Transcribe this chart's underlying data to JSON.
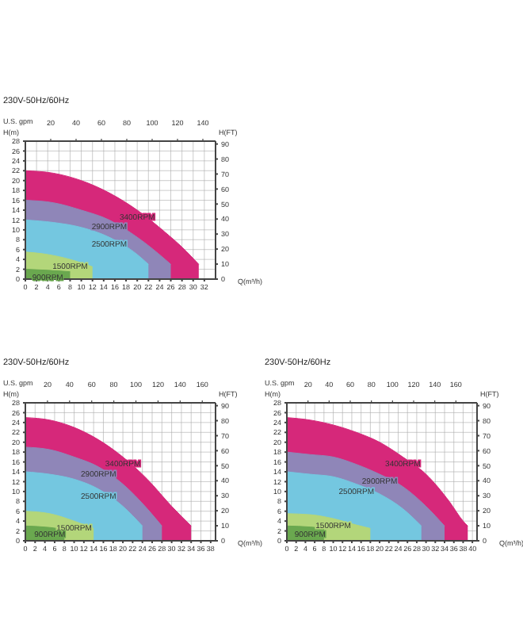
{
  "chart_data": [
    {
      "type": "area",
      "title": "230V-50Hz/60Hz",
      "xlabel": "Q(m³/h)",
      "x2label": "U.S. gpm",
      "ylabel": "H(m)",
      "y2label": "H(FT)",
      "grid": true,
      "xlim": [
        0,
        34
      ],
      "xticks": [
        0,
        2,
        4,
        6,
        8,
        10,
        12,
        14,
        16,
        18,
        20,
        22,
        24,
        26,
        28,
        30,
        32
      ],
      "x2lim": [
        0,
        150
      ],
      "x2ticks": [
        20,
        40,
        60,
        80,
        100,
        120,
        140
      ],
      "ylim": [
        0,
        28
      ],
      "yticks": [
        0,
        2,
        4,
        6,
        8,
        10,
        12,
        14,
        16,
        18,
        20,
        22,
        24,
        26,
        28
      ],
      "y2lim": [
        0,
        91.9
      ],
      "y2ticks": [
        0,
        10,
        20,
        30,
        40,
        50,
        60,
        70,
        80,
        90
      ],
      "series": [
        {
          "name": "3400RPM",
          "color": "#d6287a",
          "x": [
            0,
            5,
            10,
            15,
            20,
            25,
            28,
            31
          ],
          "values": [
            22,
            21.5,
            20,
            17.5,
            14,
            9.5,
            6.5,
            3
          ]
        },
        {
          "name": "2900RPM",
          "color": "#8f86b8",
          "x": [
            0,
            5,
            10,
            15,
            20,
            25,
            26
          ],
          "values": [
            16,
            15.5,
            14,
            12,
            8.5,
            4,
            3
          ]
        },
        {
          "name": "2500RPM",
          "color": "#74c7e0",
          "x": [
            0,
            5,
            10,
            15,
            20,
            22
          ],
          "values": [
            12,
            11.5,
            10.5,
            8.5,
            5,
            3
          ]
        },
        {
          "name": "1500RPM",
          "color": "#b3d67a",
          "x": [
            0,
            4,
            8,
            12
          ],
          "values": [
            5.5,
            5,
            4,
            2.5
          ]
        },
        {
          "name": "900RPM",
          "color": "#6aa84f",
          "x": [
            0,
            4,
            8
          ],
          "values": [
            2,
            1.8,
            1.5
          ]
        }
      ]
    },
    {
      "type": "area",
      "title": "230V-50Hz/60Hz",
      "xlabel": "Q(m³/h)",
      "x2label": "U.S. gpm",
      "ylabel": "H(m)",
      "y2label": "H(FT)",
      "grid": true,
      "xlim": [
        0,
        39
      ],
      "xticks": [
        0,
        2,
        4,
        6,
        8,
        10,
        12,
        14,
        16,
        18,
        20,
        22,
        24,
        26,
        28,
        30,
        32,
        34,
        36,
        38
      ],
      "x2lim": [
        0,
        172
      ],
      "x2ticks": [
        20,
        40,
        60,
        80,
        100,
        120,
        140,
        160
      ],
      "ylim": [
        0,
        28
      ],
      "yticks": [
        0,
        2,
        4,
        6,
        8,
        10,
        12,
        14,
        16,
        18,
        20,
        22,
        24,
        26,
        28
      ],
      "y2lim": [
        0,
        91.9
      ],
      "y2ticks": [
        0,
        10,
        20,
        30,
        40,
        50,
        60,
        70,
        80,
        90
      ],
      "series": [
        {
          "name": "3400RPM",
          "color": "#d6287a",
          "x": [
            0,
            5,
            10,
            15,
            20,
            25,
            30,
            34
          ],
          "values": [
            25,
            24.5,
            23,
            20.5,
            17,
            12.5,
            7,
            3
          ]
        },
        {
          "name": "2900RPM",
          "color": "#8f86b8",
          "x": [
            0,
            5,
            10,
            15,
            20,
            25,
            28
          ],
          "values": [
            19,
            18.5,
            17,
            15,
            11.5,
            6.5,
            3
          ]
        },
        {
          "name": "2500RPM",
          "color": "#74c7e0",
          "x": [
            0,
            5,
            10,
            15,
            20,
            24
          ],
          "values": [
            14,
            13.5,
            12.5,
            10.5,
            7,
            3
          ]
        },
        {
          "name": "1500RPM",
          "color": "#b3d67a",
          "x": [
            0,
            5,
            10,
            14
          ],
          "values": [
            6,
            5.5,
            4,
            2.5
          ]
        },
        {
          "name": "900RPM",
          "color": "#6aa84f",
          "x": [
            0,
            5,
            8
          ],
          "values": [
            3,
            2.7,
            2.3
          ]
        }
      ]
    },
    {
      "type": "area",
      "title": "230V-50Hz/60Hz",
      "xlabel": "Q(m³/h)",
      "x2label": "U.S. gpm",
      "ylabel": "H(m)",
      "y2label": "H(FT)",
      "grid": true,
      "xlim": [
        0,
        41
      ],
      "xticks": [
        0,
        2,
        4,
        6,
        8,
        10,
        12,
        14,
        16,
        18,
        20,
        22,
        24,
        26,
        28,
        30,
        32,
        34,
        36,
        38,
        40
      ],
      "x2lim": [
        0,
        180
      ],
      "x2ticks": [
        20,
        40,
        60,
        80,
        100,
        120,
        140,
        160
      ],
      "ylim": [
        0,
        28
      ],
      "yticks": [
        0,
        2,
        4,
        6,
        8,
        10,
        12,
        14,
        16,
        18,
        20,
        22,
        24,
        26,
        28
      ],
      "y2lim": [
        0,
        91.9
      ],
      "y2ticks": [
        0,
        10,
        20,
        30,
        40,
        50,
        60,
        70,
        80,
        90
      ],
      "series": [
        {
          "name": "3400RPM",
          "color": "#d6287a",
          "x": [
            0,
            5,
            10,
            15,
            20,
            25,
            30,
            35,
            38,
            39
          ],
          "values": [
            25,
            24.5,
            23.5,
            22,
            20,
            17,
            13.5,
            8,
            4,
            3
          ]
        },
        {
          "name": "2900RPM",
          "color": "#8f86b8",
          "x": [
            0,
            5,
            10,
            15,
            20,
            25,
            30,
            34
          ],
          "values": [
            18,
            17.5,
            17,
            15.5,
            13.5,
            11,
            7,
            3
          ]
        },
        {
          "name": "2500RPM",
          "color": "#74c7e0",
          "x": [
            0,
            5,
            10,
            15,
            20,
            25,
            29
          ],
          "values": [
            14,
            13.5,
            13,
            11.5,
            9.5,
            6.5,
            3
          ]
        },
        {
          "name": "1500RPM",
          "color": "#b3d67a",
          "x": [
            0,
            5,
            10,
            15,
            18
          ],
          "values": [
            5.5,
            5.3,
            4.5,
            3.2,
            2.5
          ]
        },
        {
          "name": "900RPM",
          "color": "#6aa84f",
          "x": [
            0,
            5,
            8
          ],
          "values": [
            3,
            2.8,
            2.5
          ]
        }
      ]
    }
  ]
}
